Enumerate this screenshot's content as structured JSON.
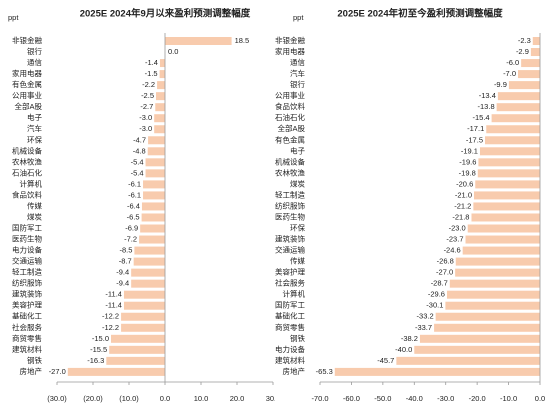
{
  "chart_data": [
    {
      "type": "barh",
      "title": "2025E 2024年9月以来盈利预测调整幅度",
      "unit": "ppt",
      "categories": [
        "非银金融",
        "银行",
        "通信",
        "家用电器",
        "有色金属",
        "公用事业",
        "全部A股",
        "电子",
        "汽车",
        "环保",
        "机械设备",
        "农林牧渔",
        "石油石化",
        "计算机",
        "食品饮料",
        "传媒",
        "煤炭",
        "国防军工",
        "医药生物",
        "电力设备",
        "交通运输",
        "轻工制造",
        "纺织服饰",
        "建筑装饰",
        "美容护理",
        "基础化工",
        "社会服务",
        "商贸零售",
        "建筑材料",
        "钢铁",
        "房地产"
      ],
      "values": [
        18.5,
        0.0,
        -1.4,
        -1.5,
        -2.2,
        -2.5,
        -2.7,
        -3.0,
        -3.0,
        -4.7,
        -4.8,
        -5.4,
        -5.4,
        -6.1,
        -6.1,
        -6.4,
        -6.5,
        -6.9,
        -7.2,
        -8.5,
        -8.7,
        -9.4,
        -9.4,
        -11.4,
        -11.4,
        -12.2,
        -12.2,
        -15.0,
        -15.5,
        -16.3,
        -27.0
      ],
      "value_labels": [
        "18.5",
        "0.0",
        "-1.4",
        "-1.5",
        "-2.2",
        "-2.5",
        "-2.7",
        "-3.0",
        "-3.0",
        "-4.7",
        "-4.8",
        "-5.4",
        "-5.4",
        "-6.1",
        "-6.1",
        "-6.4",
        "-6.5",
        "-6.9",
        "-7.2",
        "-8.5",
        "-8.7",
        "-9.4",
        "-9.4",
        "-11.4",
        "-11.4",
        "-12.2",
        "-12.2",
        "-15.0",
        "-15.5",
        "-16.3",
        "-27.0"
      ],
      "color": "#f8cbad",
      "tick_label_color": "#333333",
      "xlim": [
        -30,
        30
      ],
      "xticks": [
        {
          "value": -30,
          "label": "(30.0)"
        },
        {
          "value": -20,
          "label": "(20.0)"
        },
        {
          "value": -10,
          "label": "(10.0)"
        },
        {
          "value": 0,
          "label": "0.0"
        },
        {
          "value": 10,
          "label": "10.0"
        },
        {
          "value": 20,
          "label": "20.0"
        },
        {
          "value": 30,
          "label": "30.0"
        }
      ]
    },
    {
      "type": "barh",
      "title": "2025E 2024年初至今盈利预测调整幅度",
      "unit": "ppt",
      "categories": [
        "非银金融",
        "家用电器",
        "通信",
        "汽车",
        "银行",
        "公用事业",
        "食品饮料",
        "石油石化",
        "全部A股",
        "有色金属",
        "电子",
        "机械设备",
        "农林牧渔",
        "煤炭",
        "轻工制造",
        "纺织服饰",
        "医药生物",
        "环保",
        "建筑装饰",
        "交通运输",
        "传媒",
        "美容护理",
        "社会服务",
        "计算机",
        "国防军工",
        "基础化工",
        "商贸零售",
        "钢铁",
        "电力设备",
        "建筑材料",
        "房地产"
      ],
      "values": [
        -2.3,
        -2.9,
        -6.0,
        -7.0,
        -9.9,
        -13.4,
        -13.8,
        -15.4,
        -17.1,
        -17.5,
        -19.1,
        -19.6,
        -19.8,
        -20.6,
        -21.0,
        -21.2,
        -21.8,
        -23.0,
        -23.7,
        -24.6,
        -26.8,
        -27.0,
        -28.7,
        -29.6,
        -30.1,
        -33.2,
        -33.7,
        -38.2,
        -40.0,
        -45.7,
        -65.3
      ],
      "value_labels": [
        "-2.3",
        "-2.9",
        "-6.0",
        "-7.0",
        "-9.9",
        "-13.4",
        "-13.8",
        "-15.4",
        "-17.1",
        "-17.5",
        "-19.1",
        "-19.6",
        "-19.8",
        "-20.6",
        "-21.0",
        "-21.2",
        "-21.8",
        "-23.0",
        "-23.7",
        "-24.6",
        "-26.8",
        "-27.0",
        "-28.7",
        "-29.6",
        "-30.1",
        "-33.2",
        "-33.7",
        "-38.2",
        "-40.0",
        "-45.7",
        "-65.3"
      ],
      "color": "#f8cbad",
      "tick_label_color": "#e0302a",
      "xlim": [
        -70,
        0
      ],
      "xticks": [
        {
          "value": -70,
          "label": "-70.0"
        },
        {
          "value": -60,
          "label": "-60.0"
        },
        {
          "value": -50,
          "label": "-50.0"
        },
        {
          "value": -40,
          "label": "-40.0"
        },
        {
          "value": -30,
          "label": "-30.0"
        },
        {
          "value": -20,
          "label": "-20.0"
        },
        {
          "value": -10,
          "label": "-10.0"
        },
        {
          "value": 0,
          "label": "0.0"
        }
      ]
    }
  ]
}
